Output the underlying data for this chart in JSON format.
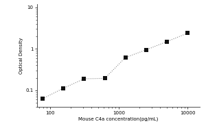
{
  "xlabel": "Mouse C4a concentration(pg/mL)",
  "ylabel": "Optical Density",
  "x_data": [
    78.125,
    156.25,
    312.5,
    625,
    1250,
    2500,
    5000,
    10000
  ],
  "y_data": [
    0.063,
    0.112,
    0.19,
    0.195,
    0.62,
    0.95,
    1.5,
    2.4
  ],
  "xlim": [
    65,
    15000
  ],
  "ylim": [
    0.04,
    12
  ],
  "xticks": [
    100,
    1000,
    10000
  ],
  "xtick_labels": [
    "100",
    "1000",
    "10000"
  ],
  "yticks": [
    0.1,
    1,
    10
  ],
  "ytick_labels": [
    "0.1",
    "1",
    "10"
  ],
  "marker_color": "#111111",
  "line_color": "#888888",
  "line_style": "dotted",
  "marker": "s",
  "marker_size": 4,
  "bg_color": "#ffffff",
  "fig_width": 3.0,
  "fig_height": 2.0,
  "dpi": 100
}
